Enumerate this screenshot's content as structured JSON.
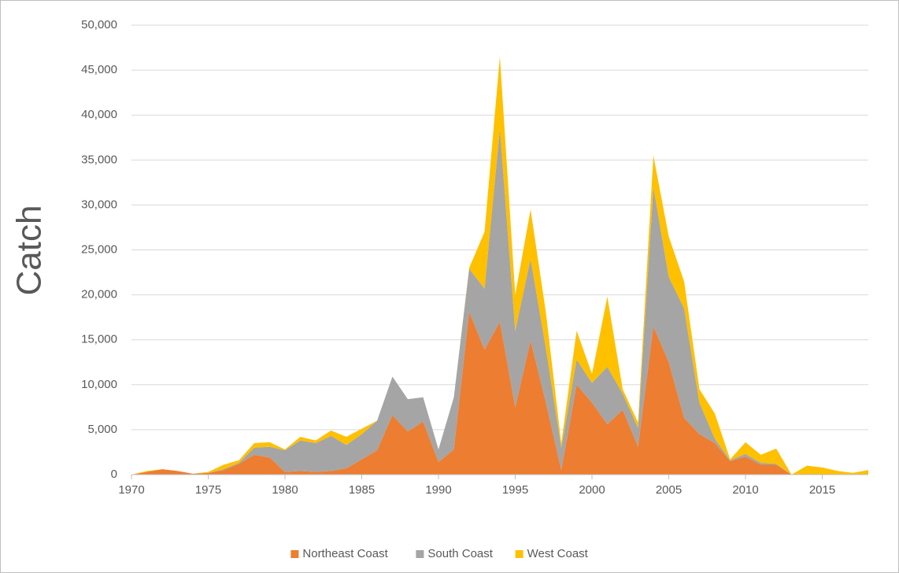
{
  "chart_data": {
    "type": "area",
    "stacked": true,
    "y_label": "Catch",
    "x": [
      1970,
      1971,
      1972,
      1973,
      1974,
      1975,
      1976,
      1977,
      1978,
      1979,
      1980,
      1981,
      1982,
      1983,
      1984,
      1985,
      1986,
      1987,
      1988,
      1989,
      1990,
      1991,
      1992,
      1993,
      1994,
      1995,
      1996,
      1997,
      1998,
      1999,
      2000,
      2001,
      2002,
      2003,
      2004,
      2005,
      2006,
      2007,
      2008,
      2009,
      2010,
      2011,
      2012,
      2013,
      2014,
      2015,
      2016,
      2017,
      2018
    ],
    "series": [
      {
        "name": "Northeast Coast",
        "color": "#ED7D31",
        "values": [
          0,
          300,
          600,
          400,
          100,
          200,
          500,
          1200,
          2200,
          1900,
          300,
          400,
          300,
          400,
          700,
          1700,
          2700,
          6600,
          4800,
          5900,
          1400,
          2800,
          18100,
          13900,
          17000,
          7500,
          14900,
          8000,
          500,
          10000,
          8000,
          5600,
          7200,
          3100,
          16500,
          12500,
          6300,
          4500,
          3500,
          1500,
          2000,
          1100,
          1100,
          0,
          0,
          0,
          0,
          0,
          0
        ]
      },
      {
        "name": "South Coast",
        "color": "#A5A5A5",
        "values": [
          0,
          0,
          0,
          0,
          0,
          0,
          100,
          100,
          800,
          1200,
          2400,
          3400,
          3200,
          3900,
          2600,
          2800,
          3300,
          4300,
          3600,
          2700,
          1400,
          5800,
          4800,
          6800,
          21500,
          8500,
          9100,
          6000,
          2500,
          2800,
          2200,
          6400,
          1800,
          2100,
          15500,
          9500,
          12200,
          3500,
          500,
          100,
          300,
          200,
          100,
          0,
          0,
          0,
          0,
          0,
          0
        ]
      },
      {
        "name": "West Coast",
        "color": "#FFC000",
        "values": [
          0,
          100,
          0,
          0,
          0,
          100,
          500,
          300,
          500,
          500,
          100,
          400,
          300,
          600,
          900,
          600,
          0,
          0,
          0,
          0,
          0,
          0,
          100,
          6300,
          8000,
          4000,
          5500,
          4000,
          500,
          3200,
          1000,
          7800,
          500,
          600,
          3500,
          4500,
          3000,
          1500,
          2800,
          100,
          1300,
          900,
          1700,
          0,
          1000,
          800,
          400,
          200,
          500
        ]
      }
    ],
    "xlim": [
      1970,
      2018
    ],
    "xticks": [
      1970,
      1975,
      1980,
      1985,
      1990,
      1995,
      2000,
      2005,
      2010,
      2015
    ],
    "ylim": [
      0,
      50000
    ],
    "yticks": [
      0,
      {
        "value": 5000,
        "label": "5,000"
      },
      {
        "value": 10000,
        "label": "10,000"
      },
      {
        "value": 15000,
        "label": "15,000"
      },
      {
        "value": 20000,
        "label": "20,000"
      },
      {
        "value": 25000,
        "label": "25,000"
      },
      {
        "value": 30000,
        "label": "30,000"
      },
      {
        "value": 35000,
        "label": "35,000"
      },
      {
        "value": 40000,
        "label": "40,000"
      },
      {
        "value": 45000,
        "label": "45,000"
      },
      {
        "value": 50000,
        "label": "50,000"
      }
    ],
    "grid": true,
    "legend": "bottom"
  }
}
